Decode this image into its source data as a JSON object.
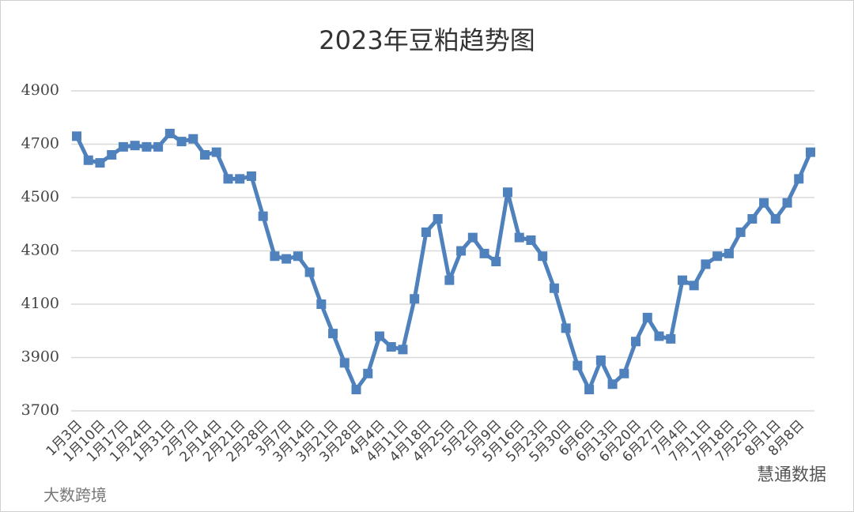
{
  "chart_data": {
    "type": "line",
    "title": "2023年豆粕趋势图",
    "categories": [
      "1月3日",
      null,
      "1月10日",
      null,
      "1月17日",
      null,
      "1月24日",
      null,
      "1月31日",
      null,
      "2月7日",
      null,
      "2月14日",
      null,
      "2月21日",
      null,
      "2月28日",
      null,
      "3月7日",
      null,
      "3月14日",
      null,
      "3月21日",
      null,
      "3月28日",
      null,
      "4月4日",
      null,
      "4月11日",
      null,
      "4月18日",
      null,
      "4月25日",
      null,
      "5月2日",
      null,
      "5月9日",
      null,
      "5月16日",
      null,
      "5月23日",
      null,
      "5月30日",
      null,
      "6月6日",
      null,
      "6月13日",
      null,
      "6月20日",
      null,
      "6月27日",
      null,
      "7月4日",
      null,
      "7月11日",
      null,
      "7月18日",
      null,
      "7月25日",
      null,
      "8月1日",
      null,
      "8月8日",
      null
    ],
    "series": [
      {
        "name": "豆粕",
        "color": "#4f81bd",
        "values": [
          4730,
          4640,
          4630,
          4660,
          4690,
          4695,
          4690,
          4690,
          4740,
          4710,
          4720,
          4660,
          4670,
          4570,
          4570,
          4580,
          4430,
          4280,
          4270,
          4280,
          4220,
          4100,
          3990,
          3880,
          3780,
          3840,
          3980,
          3940,
          3930,
          4120,
          4370,
          4420,
          4190,
          4300,
          4350,
          4290,
          4260,
          4520,
          4350,
          4340,
          4280,
          4160,
          4010,
          3870,
          3780,
          3890,
          3800,
          3840,
          3960,
          4050,
          3980,
          3970,
          4190,
          4170,
          4250,
          4280,
          4290,
          4370,
          4420,
          4480,
          4420,
          4480,
          4570,
          4670
        ]
      }
    ],
    "ylim": [
      3700,
      4900
    ],
    "yticks": [
      3700,
      3900,
      4100,
      4300,
      4500,
      4700,
      4900
    ],
    "grid": true,
    "watermarks": [
      "慧通数据",
      "大数跨境"
    ]
  }
}
